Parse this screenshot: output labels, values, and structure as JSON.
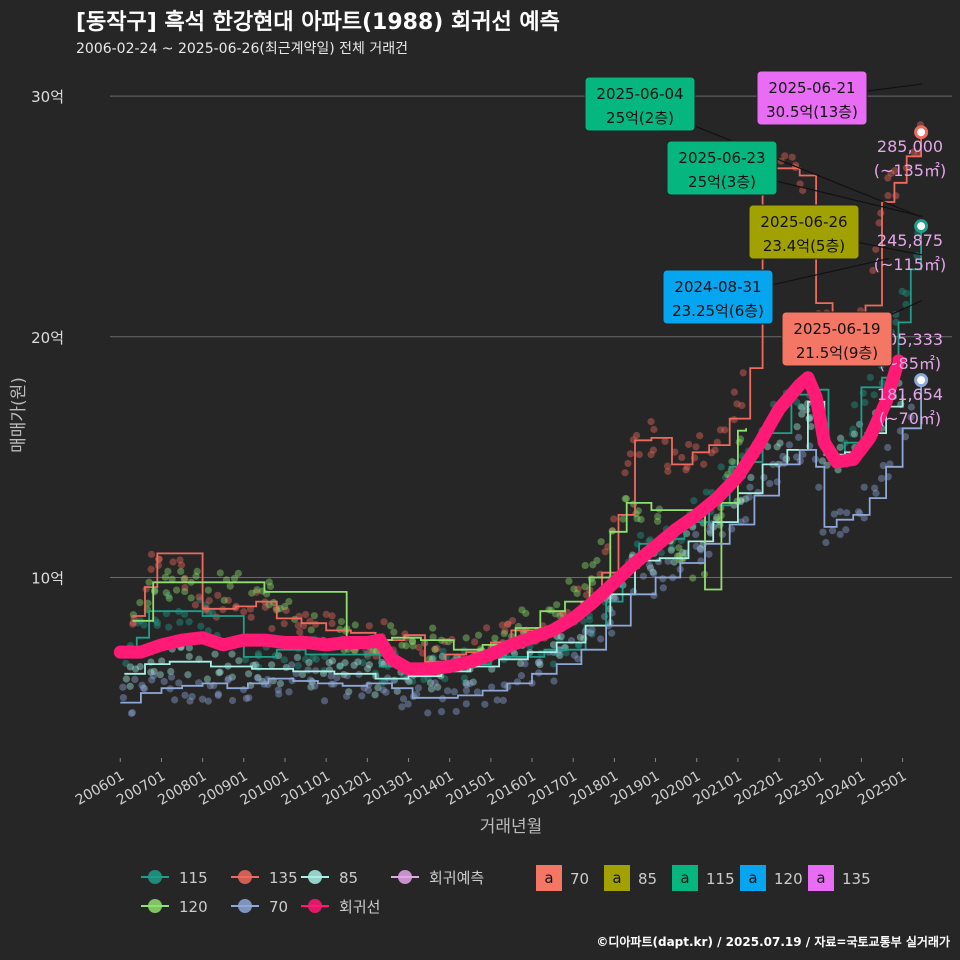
{
  "title": "[동작구] 흑석 한강현대 아파트(1988) 회귀선 예측",
  "subtitle": "2006-02-24 ~ 2025-06-26(최근계약일) 전체 거래건",
  "footer": "©디아파트(dapt.kr) / 2025.07.19 / 자료=국토교통부 실거래가",
  "colors": {
    "s115": "#1f9e8a",
    "s135": "#ef6a5e",
    "s85": "#a8f0e4",
    "s120": "#8fe06e",
    "s70": "#8ea8d8",
    "reg": "#ff1a75",
    "pred": "#e4a6e8"
  },
  "chart_data": {
    "type": "line",
    "xlabel": "거래년월",
    "ylabel": "매매가(원)",
    "x_ticks": [
      "200601",
      "200701",
      "200801",
      "200901",
      "201001",
      "201101",
      "201201",
      "201301",
      "201401",
      "201501",
      "201601",
      "201701",
      "201801",
      "201901",
      "202001",
      "202101",
      "202201",
      "202301",
      "202401",
      "202501"
    ],
    "y_ticks": [
      {
        "value": 10,
        "label": "10억"
      },
      {
        "value": 20,
        "label": "20억"
      },
      {
        "value": 30,
        "label": "30억"
      }
    ],
    "ylim": [
      2.5,
      31.5
    ],
    "xlim": [
      2005.75,
      2026.2
    ],
    "series": [
      {
        "name": "115",
        "color": "#1f9e8a",
        "points": [
          [
            2006.1,
            6.7
          ],
          [
            2006.4,
            7.5
          ],
          [
            2006.7,
            8.6
          ],
          [
            2007.0,
            8.6
          ],
          [
            2008.0,
            8.4
          ],
          [
            2009.0,
            6.7
          ],
          [
            2009.8,
            7.0
          ],
          [
            2010.5,
            6.8
          ],
          [
            2011.3,
            6.8
          ],
          [
            2012.3,
            6.3
          ],
          [
            2013.0,
            6.4
          ],
          [
            2013.6,
            6.3
          ],
          [
            2014.3,
            6.4
          ],
          [
            2015.0,
            6.7
          ],
          [
            2015.6,
            6.7
          ],
          [
            2016.3,
            7.0
          ],
          [
            2016.8,
            7.0
          ],
          [
            2017.3,
            8.0
          ],
          [
            2017.8,
            9.0
          ],
          [
            2018.2,
            10.4
          ],
          [
            2018.6,
            11.4
          ],
          [
            2019.2,
            11.6
          ],
          [
            2019.7,
            12.3
          ],
          [
            2020.3,
            13.0
          ],
          [
            2020.8,
            14.6
          ],
          [
            2021.2,
            14.8
          ],
          [
            2021.6,
            16.0
          ],
          [
            2022.3,
            17.6
          ],
          [
            2022.8,
            17.8
          ],
          [
            2023.2,
            14.9
          ],
          [
            2023.6,
            15.6
          ],
          [
            2024.0,
            17.9
          ],
          [
            2024.5,
            18.3
          ],
          [
            2024.9,
            20.6
          ],
          [
            2025.2,
            22.8
          ],
          [
            2025.45,
            24.6
          ]
        ]
      },
      {
        "name": "135",
        "color": "#ef6a5e",
        "points": [
          [
            2006.3,
            8.4
          ],
          [
            2006.6,
            9.6
          ],
          [
            2006.9,
            11.0
          ],
          [
            2007.2,
            11.0
          ],
          [
            2008.0,
            8.7
          ],
          [
            2008.8,
            8.8
          ],
          [
            2009.3,
            9.0
          ],
          [
            2009.8,
            8.3
          ],
          [
            2010.4,
            8.1
          ],
          [
            2011.0,
            7.8
          ],
          [
            2011.6,
            7.7
          ],
          [
            2012.2,
            7.4
          ],
          [
            2012.9,
            7.6
          ],
          [
            2013.4,
            6.5
          ],
          [
            2013.9,
            6.8
          ],
          [
            2014.4,
            6.9
          ],
          [
            2015.0,
            7.3
          ],
          [
            2015.5,
            7.8
          ],
          [
            2016.1,
            7.9
          ],
          [
            2016.7,
            8.3
          ],
          [
            2017.2,
            9.0
          ],
          [
            2017.7,
            10.2
          ],
          [
            2018.1,
            12.6
          ],
          [
            2018.5,
            15.7
          ],
          [
            2018.9,
            15.8
          ],
          [
            2019.4,
            14.7
          ],
          [
            2019.9,
            15.2
          ],
          [
            2020.3,
            15.5
          ],
          [
            2020.8,
            16.6
          ],
          [
            2021.3,
            18.7
          ],
          [
            2021.6,
            27.0
          ],
          [
            2022.0,
            27.0
          ],
          [
            2022.5,
            26.7
          ],
          [
            2022.9,
            21.4
          ],
          [
            2023.3,
            20.3
          ],
          [
            2023.7,
            20.4
          ],
          [
            2024.1,
            21.3
          ],
          [
            2024.5,
            25.6
          ],
          [
            2024.8,
            26.4
          ],
          [
            2025.1,
            27.5
          ],
          [
            2025.45,
            28.5
          ]
        ]
      },
      {
        "name": "85",
        "color": "#a8f0e4",
        "points": [
          [
            2006.1,
            6.0
          ],
          [
            2006.6,
            6.4
          ],
          [
            2007.2,
            6.5
          ],
          [
            2008.2,
            6.3
          ],
          [
            2009.2,
            6.2
          ],
          [
            2010.2,
            6.1
          ],
          [
            2011.2,
            6.0
          ],
          [
            2012.2,
            5.8
          ],
          [
            2013.0,
            5.9
          ],
          [
            2013.8,
            6.1
          ],
          [
            2014.5,
            6.3
          ],
          [
            2015.2,
            6.6
          ],
          [
            2015.9,
            6.9
          ],
          [
            2016.6,
            7.3
          ],
          [
            2017.3,
            8.0
          ],
          [
            2017.9,
            9.3
          ],
          [
            2018.5,
            10.7
          ],
          [
            2019.1,
            10.8
          ],
          [
            2019.8,
            11.5
          ],
          [
            2020.4,
            12.3
          ],
          [
            2021.0,
            13.5
          ],
          [
            2021.6,
            14.7
          ],
          [
            2022.2,
            15.3
          ],
          [
            2022.7,
            17.3
          ],
          [
            2023.1,
            15.1
          ],
          [
            2023.6,
            15.2
          ],
          [
            2024.1,
            16.0
          ],
          [
            2024.6,
            17.1
          ],
          [
            2025.0,
            17.6
          ]
        ]
      },
      {
        "name": "120",
        "color": "#8fe06e",
        "points": [
          [
            2006.3,
            8.2
          ],
          [
            2006.8,
            9.8
          ],
          [
            2007.1,
            9.8
          ],
          [
            2009.5,
            9.4
          ],
          [
            2011.5,
            7.4
          ],
          [
            2012.6,
            7.5
          ],
          [
            2013.3,
            7.4
          ],
          [
            2014.1,
            7.0
          ],
          [
            2014.8,
            7.2
          ],
          [
            2015.6,
            7.9
          ],
          [
            2016.2,
            8.6
          ],
          [
            2016.8,
            9.0
          ],
          [
            2017.4,
            10.0
          ],
          [
            2017.9,
            11.9
          ],
          [
            2018.3,
            13.1
          ],
          [
            2018.9,
            12.8
          ],
          [
            2020.2,
            9.5
          ],
          [
            2020.6,
            13.1
          ],
          [
            2021.0,
            16.1
          ],
          [
            2021.2,
            16.2
          ]
        ]
      },
      {
        "name": "70",
        "color": "#8ea8d8",
        "points": [
          [
            2006.0,
            4.8
          ],
          [
            2006.5,
            5.2
          ],
          [
            2007.0,
            5.4
          ],
          [
            2007.5,
            5.5
          ],
          [
            2008.0,
            5.6
          ],
          [
            2008.6,
            5.4
          ],
          [
            2009.1,
            5.6
          ],
          [
            2009.6,
            5.8
          ],
          [
            2010.2,
            5.7
          ],
          [
            2010.8,
            5.6
          ],
          [
            2011.4,
            5.5
          ],
          [
            2012.0,
            5.6
          ],
          [
            2012.6,
            5.4
          ],
          [
            2013.1,
            5.0
          ],
          [
            2013.7,
            5.0
          ],
          [
            2014.2,
            5.1
          ],
          [
            2014.8,
            5.3
          ],
          [
            2015.4,
            5.6
          ],
          [
            2016.0,
            6.0
          ],
          [
            2016.6,
            6.4
          ],
          [
            2017.2,
            7.0
          ],
          [
            2017.8,
            8.0
          ],
          [
            2018.4,
            9.3
          ],
          [
            2019.0,
            10.0
          ],
          [
            2019.6,
            10.6
          ],
          [
            2020.2,
            11.4
          ],
          [
            2020.8,
            12.2
          ],
          [
            2021.4,
            13.4
          ],
          [
            2022.0,
            14.7
          ],
          [
            2022.5,
            15.3
          ],
          [
            2022.9,
            14.6
          ],
          [
            2023.1,
            12.1
          ],
          [
            2023.4,
            12.4
          ],
          [
            2023.8,
            12.6
          ],
          [
            2024.2,
            13.3
          ],
          [
            2024.6,
            14.6
          ],
          [
            2025.0,
            16.2
          ],
          [
            2025.45,
            18.2
          ]
        ]
      },
      {
        "name": "회귀선",
        "color": "#ff1a75",
        "points": [
          [
            2006.0,
            6.9
          ],
          [
            2006.5,
            6.9
          ],
          [
            2007.0,
            7.2
          ],
          [
            2007.5,
            7.4
          ],
          [
            2008.0,
            7.5
          ],
          [
            2008.5,
            7.2
          ],
          [
            2009.0,
            7.4
          ],
          [
            2009.5,
            7.4
          ],
          [
            2010.0,
            7.3
          ],
          [
            2010.5,
            7.3
          ],
          [
            2011.0,
            7.2
          ],
          [
            2011.5,
            7.3
          ],
          [
            2012.0,
            7.3
          ],
          [
            2012.3,
            7.4
          ],
          [
            2012.6,
            6.6
          ],
          [
            2013.0,
            6.2
          ],
          [
            2013.5,
            6.2
          ],
          [
            2014.0,
            6.3
          ],
          [
            2014.5,
            6.5
          ],
          [
            2015.0,
            6.8
          ],
          [
            2015.5,
            7.2
          ],
          [
            2016.0,
            7.5
          ],
          [
            2016.5,
            7.8
          ],
          [
            2017.0,
            8.3
          ],
          [
            2017.5,
            9.0
          ],
          [
            2018.0,
            9.8
          ],
          [
            2018.5,
            10.6
          ],
          [
            2019.0,
            11.3
          ],
          [
            2019.5,
            12.0
          ],
          [
            2020.0,
            12.6
          ],
          [
            2020.5,
            13.3
          ],
          [
            2021.0,
            14.2
          ],
          [
            2021.5,
            15.5
          ],
          [
            2022.0,
            17.0
          ],
          [
            2022.5,
            18.0
          ],
          [
            2022.7,
            18.3
          ],
          [
            2022.9,
            17.5
          ],
          [
            2023.1,
            15.6
          ],
          [
            2023.4,
            14.8
          ],
          [
            2023.8,
            14.9
          ],
          [
            2024.2,
            15.8
          ],
          [
            2024.6,
            17.3
          ],
          [
            2024.9,
            19.0
          ]
        ]
      },
      {
        "name": "회귀예측",
        "color": "#e4a6e8",
        "points": []
      }
    ],
    "end_points": [
      {
        "series": "135",
        "x": 2025.45,
        "y": 28.5
      },
      {
        "series": "115",
        "x": 2025.45,
        "y": 24.6
      },
      {
        "series": "70",
        "x": 2025.45,
        "y": 18.2
      }
    ],
    "predictions": [
      {
        "text": [
          "285,000",
          "(~135㎡)"
        ],
        "y": 28.5
      },
      {
        "text": [
          "245,875",
          "(~115㎡)"
        ],
        "y": 24.6
      },
      {
        "text": [
          "205,333",
          "(~85㎡)"
        ],
        "y": 20.5
      },
      {
        "text": [
          "181,654",
          "(~70㎡)"
        ],
        "y": 18.2
      }
    ],
    "annotations": [
      {
        "date": "2025-06-04",
        "label": "25억(2층)",
        "color": "#05b77e",
        "fg": "#111",
        "x": 2025.42,
        "y": 25.0,
        "bx": 640,
        "by": 104
      },
      {
        "date": "2025-06-21",
        "label": "30.5억(13층)",
        "color": "#e96cf4",
        "fg": "#111",
        "x": 2025.47,
        "y": 30.5,
        "bx": 812,
        "by": 98
      },
      {
        "date": "2025-06-23",
        "label": "25억(3층)",
        "color": "#05b77e",
        "fg": "#111",
        "x": 2025.48,
        "y": 25.0,
        "bx": 722,
        "by": 168
      },
      {
        "date": "2025-06-26",
        "label": "23.4억(5층)",
        "color": "#a1a102",
        "fg": "#111",
        "x": 2025.48,
        "y": 23.4,
        "bx": 804,
        "by": 232
      },
      {
        "date": "2024-08-31",
        "label": "23.25억(6층)",
        "color": "#05a5ef",
        "fg": "#111",
        "x": 2024.66,
        "y": 23.25,
        "bx": 718,
        "by": 297
      },
      {
        "date": "2025-06-19",
        "label": "21.5억(9층)",
        "color": "#f47766",
        "fg": "#111",
        "x": 2025.46,
        "y": 21.5,
        "bx": 837,
        "by": 339
      }
    ],
    "legend": {
      "position": "bottom",
      "series_items": [
        {
          "label": "115",
          "color": "#1f9e8a"
        },
        {
          "label": "135",
          "color": "#ef6a5e"
        },
        {
          "label": "85",
          "color": "#a8f0e4"
        },
        {
          "label": "회귀예측",
          "color": "#e4a6e8"
        },
        {
          "label": "120",
          "color": "#8fe06e"
        },
        {
          "label": "70",
          "color": "#8ea8d8"
        },
        {
          "label": "회귀선",
          "color": "#ff1a75"
        }
      ],
      "box_items": [
        {
          "label": "70",
          "color": "#f47766"
        },
        {
          "label": "85",
          "color": "#a1a102"
        },
        {
          "label": "115",
          "color": "#05b77e"
        },
        {
          "label": "120",
          "color": "#05a5ef"
        },
        {
          "label": "135",
          "color": "#e96cf4"
        }
      ],
      "box_glyph": "a"
    }
  }
}
